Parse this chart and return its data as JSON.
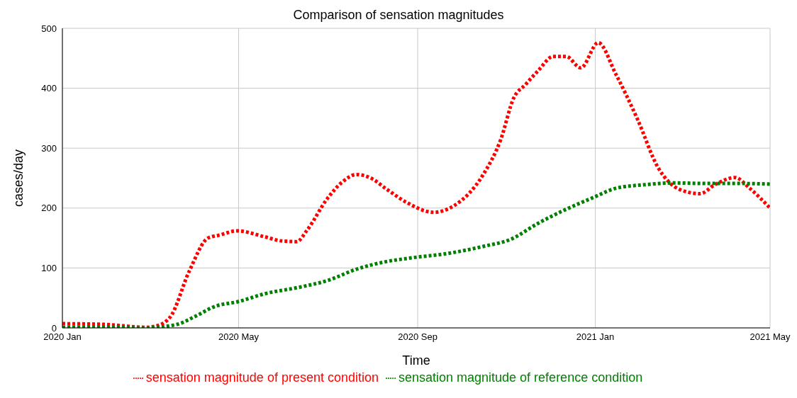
{
  "chart_data": {
    "type": "line",
    "title": "Comparison of sensation magnitudes",
    "xlabel": "Time",
    "ylabel": "cases/day",
    "xlim": [
      "2020-01-01",
      "2021-05-01"
    ],
    "xticks": [
      {
        "value": "2020-01-01",
        "label": "2020 Jan"
      },
      {
        "value": "2020-05-01",
        "label": "2020 May"
      },
      {
        "value": "2020-09-01",
        "label": "2020 Sep"
      },
      {
        "value": "2021-01-01",
        "label": "2021 Jan"
      },
      {
        "value": "2021-05-01",
        "label": "2021 May"
      }
    ],
    "ylim": [
      0,
      500
    ],
    "yticks": [
      0,
      100,
      200,
      300,
      400,
      500
    ],
    "grid": true,
    "legend": "bottom",
    "line_style": "dotted",
    "series": [
      {
        "name": "sensation magnitude of present condition",
        "color": "#ff0000",
        "x": [
          "2020-01-01",
          "2020-01-29",
          "2020-02-27",
          "2020-03-05",
          "2020-03-15",
          "2020-03-28",
          "2020-04-10",
          "2020-04-18",
          "2020-04-30",
          "2020-05-19",
          "2020-05-31",
          "2020-06-10",
          "2020-06-17",
          "2020-07-01",
          "2020-07-11",
          "2020-07-21",
          "2020-07-30",
          "2020-08-11",
          "2020-08-24",
          "2020-09-12",
          "2020-09-26",
          "2020-10-16",
          "2020-10-28",
          "2020-11-06",
          "2020-11-14",
          "2020-11-23",
          "2020-12-03",
          "2020-12-12",
          "2020-12-22",
          "2021-01-03",
          "2021-01-15",
          "2021-01-30",
          "2021-02-13",
          "2021-02-28",
          "2021-03-14",
          "2021-03-24",
          "2021-04-07",
          "2021-04-17",
          "2021-05-01"
        ],
        "values": [
          7,
          6,
          1,
          3,
          18,
          94,
          150,
          155,
          162,
          152,
          145,
          144,
          163,
          216,
          243,
          256,
          251,
          231,
          210,
          193,
          204,
          256,
          314,
          384,
          406,
          430,
          453,
          453,
          434,
          476,
          424,
          348,
          268,
          231,
          224,
          239,
          251,
          233,
          200
        ]
      },
      {
        "name": "sensation magnitude of reference condition",
        "color": "#008000",
        "x": [
          "2020-01-01",
          "2020-02-03",
          "2020-02-27",
          "2020-03-20",
          "2020-04-01",
          "2020-04-15",
          "2020-05-01",
          "2020-05-19",
          "2020-06-12",
          "2020-07-01",
          "2020-07-21",
          "2020-08-09",
          "2020-08-28",
          "2020-09-21",
          "2020-10-16",
          "2020-11-04",
          "2020-11-23",
          "2020-12-12",
          "2020-12-31",
          "2021-01-15",
          "2021-02-04",
          "2021-02-23",
          "2021-03-19",
          "2021-04-12",
          "2021-05-01"
        ],
        "values": [
          1,
          1,
          0,
          6,
          19,
          36,
          44,
          57,
          68,
          79,
          98,
          110,
          117,
          124,
          136,
          148,
          175,
          198,
          218,
          233,
          239,
          242,
          241,
          241,
          240
        ]
      }
    ]
  }
}
